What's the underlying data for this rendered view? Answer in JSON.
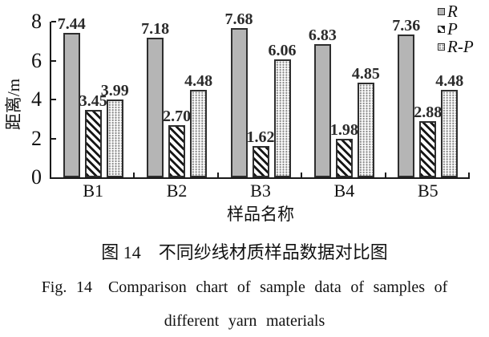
{
  "chart_data": {
    "type": "bar",
    "title": "",
    "categories": [
      "B1",
      "B2",
      "B3",
      "B4",
      "B5"
    ],
    "series": [
      {
        "name": "R",
        "pattern": "solid-gray",
        "values": [
          7.44,
          7.18,
          7.68,
          6.83,
          7.36
        ]
      },
      {
        "name": "P",
        "pattern": "diagonal-hatch",
        "values": [
          3.45,
          2.7,
          1.62,
          1.98,
          2.88
        ]
      },
      {
        "name": "R-P",
        "pattern": "dotted",
        "values": [
          3.99,
          4.48,
          6.06,
          4.85,
          4.48
        ]
      }
    ],
    "xlabel": "样品名称",
    "ylabel": "距离/m",
    "ylim": [
      0,
      8
    ],
    "yticks": [
      0,
      2,
      4,
      6,
      8
    ],
    "grid": false,
    "legend_position": "top-right",
    "value_labels": true,
    "value_label_format": "0.00"
  },
  "colors": {
    "bar_gray": "#b5b5b5",
    "bar_border": "#2e2e2e",
    "axis": "#1a1a1a",
    "text": "#111111"
  },
  "captions": {
    "zh": "图 14　不同纱线材质样品数据对比图",
    "en_line1": "Fig. 14 Comparison chart of sample data of samples of",
    "en_line2": "different yarn materials"
  }
}
